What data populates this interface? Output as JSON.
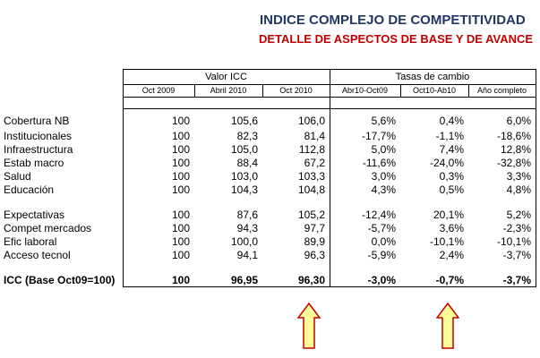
{
  "title": "INDICE COMPLEJO DE COMPETITIVIDAD",
  "subtitle": "DETALLE DE ASPECTOS DE BASE Y DE AVANCE",
  "groups": {
    "valor": "Valor ICC",
    "tasas": "Tasas de cambio"
  },
  "columns": [
    "Oct 2009",
    "Abril 2010",
    "Oct 2010",
    "Abr10-Oct09",
    "Oct10-Ab10",
    "Año completo"
  ],
  "rows": [
    {
      "label": "Cobertura NB",
      "values": [
        "100",
        "105,6",
        "106,0",
        "5,6%",
        "0,4%",
        "6,0%"
      ]
    },
    {
      "label": "Institucionales",
      "values": [
        "100",
        "82,3",
        "81,4",
        "-17,7%",
        "-1,1%",
        "-18,6%"
      ]
    },
    {
      "label": "Infraestructura",
      "values": [
        "100",
        "105,0",
        "112,8",
        "5,0%",
        "7,4%",
        "12,8%"
      ]
    },
    {
      "label": "Estab macro",
      "values": [
        "100",
        "88,4",
        "67,2",
        "-11,6%",
        "-24,0%",
        "-32,8%"
      ]
    },
    {
      "label": "Salud",
      "values": [
        "100",
        "103,0",
        "103,3",
        "3,0%",
        "0,3%",
        "3,3%"
      ]
    },
    {
      "label": "Educación",
      "values": [
        "100",
        "104,3",
        "104,8",
        "4,3%",
        "0,5%",
        "4,8%"
      ]
    },
    {
      "label": "Expectativas",
      "values": [
        "100",
        "87,6",
        "105,2",
        "-12,4%",
        "20,1%",
        "5,2%"
      ]
    },
    {
      "label": "Compet mercados",
      "values": [
        "100",
        "94,3",
        "97,7",
        "-5,7%",
        "3,6%",
        "-2,3%"
      ]
    },
    {
      "label": "Efic laboral",
      "values": [
        "100",
        "100,0",
        "89,9",
        "0,0%",
        "-10,1%",
        "-10,1%"
      ]
    },
    {
      "label": "Acceso tecnol",
      "values": [
        "100",
        "94,1",
        "96,3",
        "-5,9%",
        "2,4%",
        "-3,7%"
      ]
    }
  ],
  "total": {
    "label": "ICC (Base Oct09=100)",
    "values": [
      "100",
      "96,95",
      "96,30",
      "-3,0%",
      "-0,7%",
      "-3,7%"
    ]
  },
  "colors": {
    "title": "#1f3864",
    "subtitle": "#c00000",
    "arrow_fill": "#ffff99",
    "arrow_stroke": "#c00000"
  }
}
